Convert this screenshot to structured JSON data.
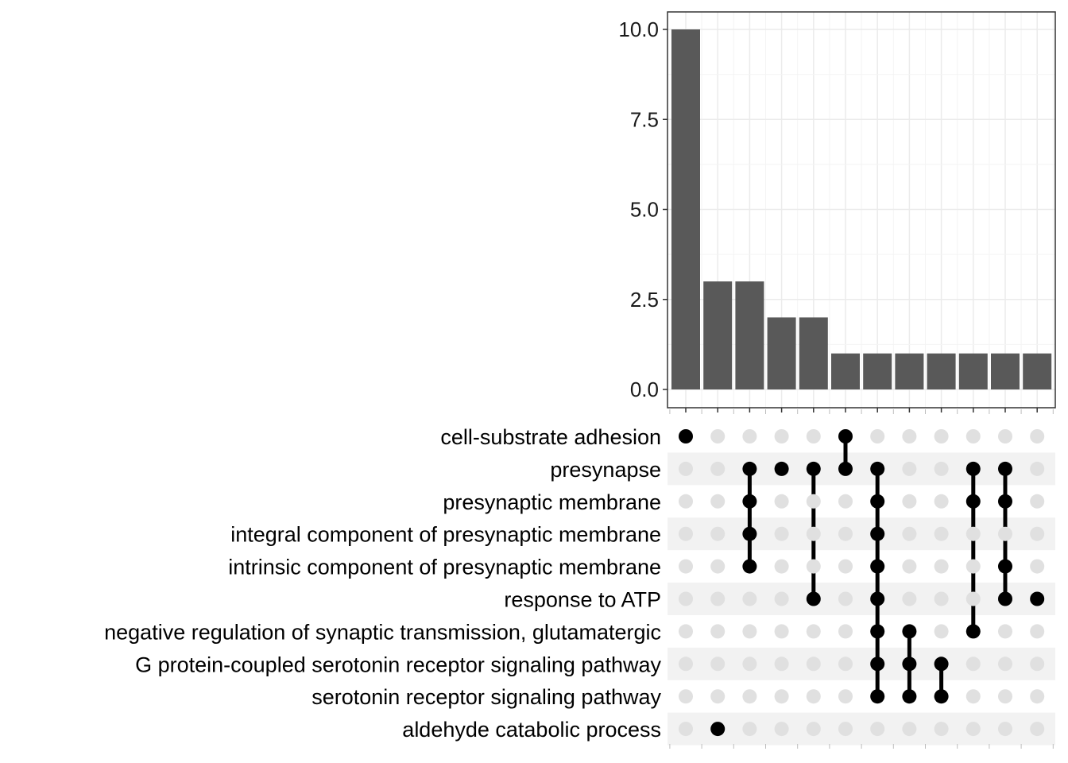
{
  "chart_data": {
    "type": "upset",
    "title": "",
    "xlabel": "",
    "ylabel": "",
    "ylim": [
      0,
      10.5
    ],
    "y_ticks": [
      "0.0",
      "2.5",
      "5.0",
      "7.5",
      "10.0"
    ],
    "grid": true,
    "sets": [
      "cell-substrate adhesion",
      "presynapse",
      "presynaptic membrane",
      "integral component of presynaptic membrane",
      "intrinsic component of presynaptic membrane",
      "response to ATP",
      "negative regulation of synaptic transmission, glutamatergic",
      "G protein-coupled serotonin receptor signaling pathway",
      "serotonin receptor signaling pathway",
      "aldehyde catabolic process"
    ],
    "intersections": [
      {
        "sets": [
          "cell-substrate adhesion"
        ],
        "value": 10
      },
      {
        "sets": [
          "aldehyde catabolic process"
        ],
        "value": 3
      },
      {
        "sets": [
          "presynapse",
          "presynaptic membrane",
          "integral component of presynaptic membrane",
          "intrinsic component of presynaptic membrane"
        ],
        "value": 3
      },
      {
        "sets": [
          "presynapse"
        ],
        "value": 2
      },
      {
        "sets": [
          "presynapse",
          "response to ATP"
        ],
        "value": 2
      },
      {
        "sets": [
          "cell-substrate adhesion",
          "presynapse"
        ],
        "value": 1
      },
      {
        "sets": [
          "presynapse",
          "presynaptic membrane",
          "integral component of presynaptic membrane",
          "intrinsic component of presynaptic membrane",
          "response to ATP",
          "negative regulation of synaptic transmission, glutamatergic",
          "G protein-coupled serotonin receptor signaling pathway",
          "serotonin receptor signaling pathway"
        ],
        "value": 1
      },
      {
        "sets": [
          "negative regulation of synaptic transmission, glutamatergic",
          "G protein-coupled serotonin receptor signaling pathway",
          "serotonin receptor signaling pathway"
        ],
        "value": 1
      },
      {
        "sets": [
          "G protein-coupled serotonin receptor signaling pathway",
          "serotonin receptor signaling pathway"
        ],
        "value": 1
      },
      {
        "sets": [
          "presynapse",
          "presynaptic membrane",
          "negative regulation of synaptic transmission, glutamatergic"
        ],
        "value": 1
      },
      {
        "sets": [
          "presynapse",
          "presynaptic membrane",
          "intrinsic component of presynaptic membrane",
          "response to ATP"
        ],
        "value": 1
      },
      {
        "sets": [
          "response to ATP"
        ],
        "value": 1
      }
    ],
    "colors": {
      "bar": "#595959",
      "dot_active": "#000000",
      "dot_inactive": "#e0e0e0",
      "stripe": "#f2f2f2",
      "grid": "#ebebeb",
      "panel_border": "#333333"
    }
  }
}
